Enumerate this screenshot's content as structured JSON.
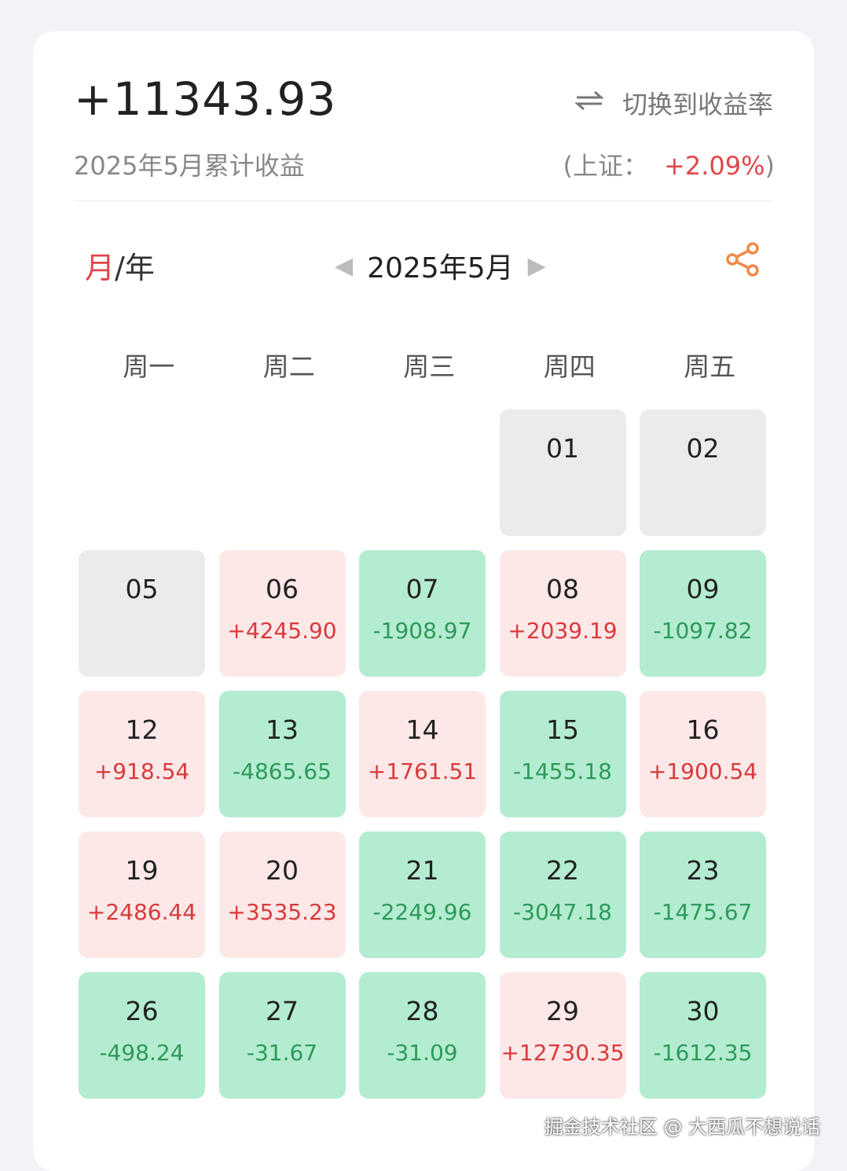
{
  "summary": {
    "total": "+11343.93",
    "label": "2025年5月累计收益",
    "switch_label": "切换到收益率",
    "index_prefix": "(上证：",
    "index_value": "+2.09%",
    "index_suffix": ")"
  },
  "nav": {
    "mode_active": "月",
    "mode_sep": "/",
    "mode_other": "年",
    "current": "2025年5月"
  },
  "weekdays": [
    "周一",
    "周二",
    "周三",
    "周四",
    "周五"
  ],
  "colors": {
    "up": "#d8393b",
    "down": "#2e9a5a",
    "up_bg": "#fde8e8",
    "down_bg": "#b3ecd0",
    "closed_bg": "#ebebeb",
    "accent": "#e0474a",
    "share": "#f08a4b"
  },
  "days": [
    {
      "day": "",
      "value": "",
      "type": "empty"
    },
    {
      "day": "",
      "value": "",
      "type": "empty"
    },
    {
      "day": "",
      "value": "",
      "type": "empty"
    },
    {
      "day": "01",
      "value": "",
      "type": "gray"
    },
    {
      "day": "02",
      "value": "",
      "type": "gray"
    },
    {
      "day": "05",
      "value": "",
      "type": "gray"
    },
    {
      "day": "06",
      "value": "+4245.90",
      "type": "red"
    },
    {
      "day": "07",
      "value": "-1908.97",
      "type": "green"
    },
    {
      "day": "08",
      "value": "+2039.19",
      "type": "red"
    },
    {
      "day": "09",
      "value": "-1097.82",
      "type": "green"
    },
    {
      "day": "12",
      "value": "+918.54",
      "type": "red"
    },
    {
      "day": "13",
      "value": "-4865.65",
      "type": "green"
    },
    {
      "day": "14",
      "value": "+1761.51",
      "type": "red"
    },
    {
      "day": "15",
      "value": "-1455.18",
      "type": "green"
    },
    {
      "day": "16",
      "value": "+1900.54",
      "type": "red"
    },
    {
      "day": "19",
      "value": "+2486.44",
      "type": "red"
    },
    {
      "day": "20",
      "value": "+3535.23",
      "type": "red"
    },
    {
      "day": "21",
      "value": "-2249.96",
      "type": "green"
    },
    {
      "day": "22",
      "value": "-3047.18",
      "type": "green"
    },
    {
      "day": "23",
      "value": "-1475.67",
      "type": "green"
    },
    {
      "day": "26",
      "value": "-498.24",
      "type": "green"
    },
    {
      "day": "27",
      "value": "-31.67",
      "type": "green"
    },
    {
      "day": "28",
      "value": "-31.09",
      "type": "green"
    },
    {
      "day": "29",
      "value": "+12730.35",
      "type": "red"
    },
    {
      "day": "30",
      "value": "-1612.35",
      "type": "green"
    }
  ],
  "watermark": "掘金技术社区 @ 大西瓜不想说话"
}
